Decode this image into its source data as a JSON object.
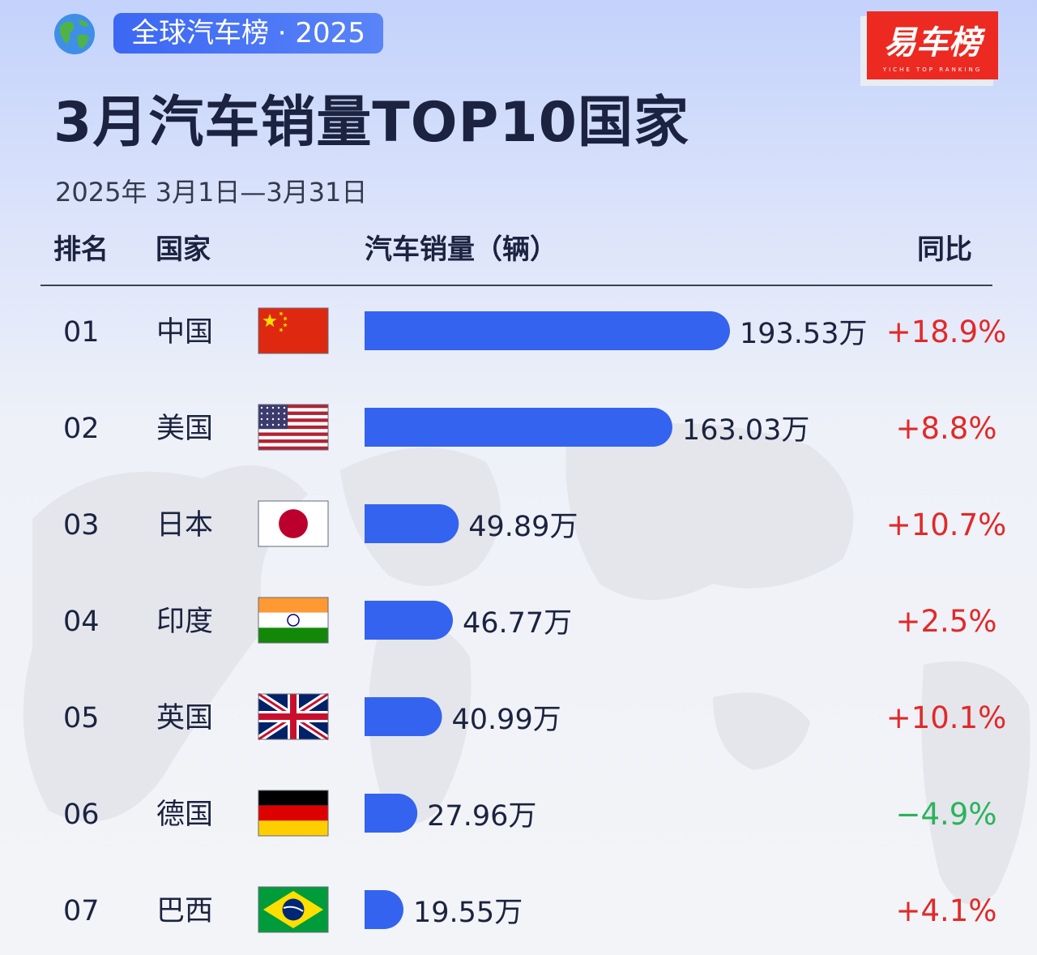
{
  "header": {
    "tag": "全球汽车榜 · 2025",
    "logo_text": "易车榜",
    "logo_subtext": "YICHE TOP RANKING",
    "title": "3月汽车销量TOP10国家",
    "subtitle": "2025年 3月1日—3月31日"
  },
  "table_header": {
    "rank": "排名",
    "country": "国家",
    "sales": "汽车销量（辆）",
    "yoy": "同比"
  },
  "colors": {
    "bar": "#3463ef",
    "positive": "#e02a2a",
    "negative": "#2bb35a"
  },
  "chart_data": {
    "type": "bar",
    "orientation": "horizontal",
    "unit": "万",
    "categories": [
      "中国",
      "美国",
      "日本",
      "印度",
      "英国",
      "德国",
      "巴西"
    ],
    "ranks": [
      "01",
      "02",
      "03",
      "04",
      "05",
      "06",
      "07"
    ],
    "flags": [
      "china-flag",
      "usa-flag",
      "japan-flag",
      "india-flag",
      "uk-flag",
      "germany-flag",
      "brazil-flag"
    ],
    "values": [
      193.53,
      163.03,
      49.89,
      46.77,
      40.99,
      27.96,
      19.55
    ],
    "value_labels": [
      "193.53万",
      "163.03万",
      "49.89万",
      "46.77万",
      "40.99万",
      "27.96万",
      "19.55万"
    ],
    "yoy": [
      "+18.9%",
      "+8.8%",
      "+10.7%",
      "+2.5%",
      "+10.1%",
      "−4.9%",
      "+4.1%"
    ],
    "yoy_sign": [
      "positive",
      "positive",
      "positive",
      "positive",
      "positive",
      "negative",
      "positive"
    ],
    "xlim": [
      0,
      193.53
    ],
    "grid": false
  }
}
